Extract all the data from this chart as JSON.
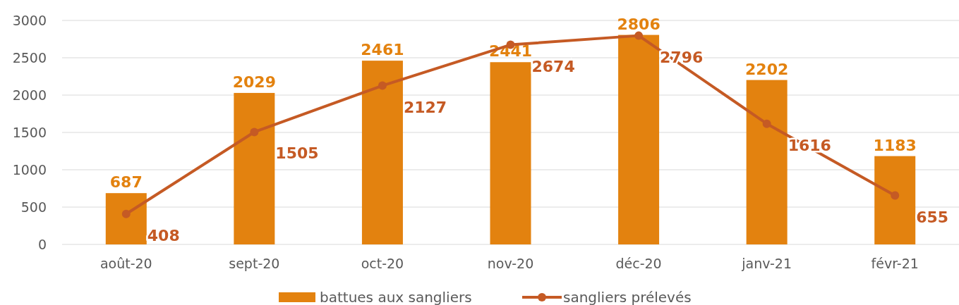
{
  "chart_data": {
    "type": "bar",
    "categories": [
      "août-20",
      "sept-20",
      "oct-20",
      "nov-20",
      "déc-20",
      "janv-21",
      "févr-21"
    ],
    "series": [
      {
        "name": "battues aux sangliers",
        "color": "#e3820f",
        "values": [
          687,
          2029,
          2461,
          2441,
          2806,
          2202,
          1183
        ]
      },
      {
        "name": "sangliers prélevés",
        "type": "line",
        "color": "#c55a24",
        "values": [
          408,
          1505,
          2127,
          2674,
          2796,
          1616,
          655
        ]
      }
    ],
    "ylim": [
      0,
      3000
    ],
    "yticks": [
      0,
      500,
      1000,
      1500,
      2000,
      2500,
      3000
    ],
    "grid": "y",
    "legend": "bottom",
    "marker": "circle",
    "data_labels": true
  }
}
